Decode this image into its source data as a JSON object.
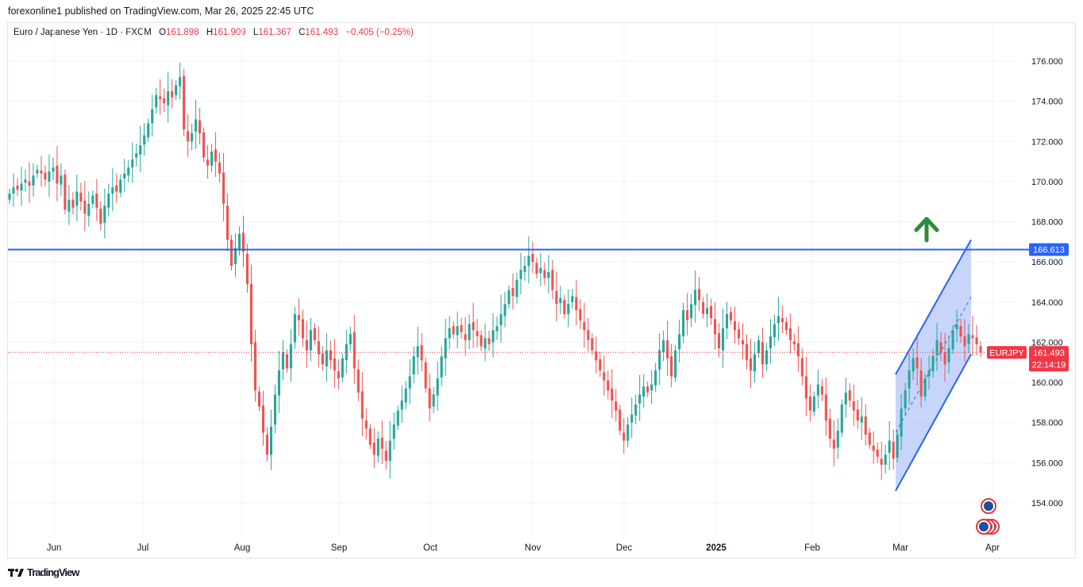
{
  "header": {
    "published": "forexonline1 published on TradingView.com, Mar 26, 2025 22:45 UTC"
  },
  "legend": {
    "symbol": "Euro / Japanese Yen · 1D · FXCM",
    "o_label": "O",
    "o": "161.898",
    "h_label": "H",
    "h": "161.909",
    "l_label": "L",
    "l": "161.367",
    "c_label": "C",
    "c": "161.493",
    "change": "−0.405 (−0.25%)"
  },
  "footer": {
    "logo_icon": "tradingview-logo-icon",
    "brand": "TradingView"
  },
  "colors": {
    "up": "#26a69a",
    "down": "#ef5350",
    "level": "#2962ff",
    "channel_fill": "#9bb3f7",
    "arrow": "#2e8b3a",
    "price_label": "#f23645"
  },
  "chart_data": {
    "type": "candlestick",
    "title": "Euro / Japanese Yen · 1D · FXCM",
    "ylim": [
      152.5,
      177.5
    ],
    "yticks": [
      "154.000",
      "156.000",
      "158.000",
      "160.000",
      "162.000",
      "164.000",
      "166.000",
      "168.000",
      "170.000",
      "172.000",
      "174.000",
      "176.000"
    ],
    "xticks": [
      "Jun",
      "Jul",
      "Aug",
      "Sep",
      "Oct",
      "Nov",
      "Dec",
      "2025",
      "Feb",
      "Mar",
      "Apr"
    ],
    "horizontal_level": {
      "value": 166.613,
      "label": "166.613"
    },
    "last_price": {
      "value": 161.493,
      "symbol": "EURJPY",
      "label": "161.493",
      "countdown": "22:14:19"
    },
    "channel": {
      "start": "2025-02-28",
      "end": "2025-03-24",
      "lower_start": 154.6,
      "lower_end": 161.4,
      "upper_start": 160.4,
      "upper_end": 167.1
    },
    "closes": [
      169.4,
      169.7,
      169.6,
      169.9,
      170.1,
      169.8,
      170.3,
      170.6,
      170.4,
      170.1,
      170.5,
      170.7,
      169.9,
      170.3,
      168.6,
      169.1,
      168.7,
      169.5,
      169.0,
      168.4,
      168.9,
      169.3,
      168.7,
      167.9,
      168.8,
      169.4,
      169.7,
      169.5,
      170.1,
      170.4,
      170.7,
      171.1,
      171.4,
      171.8,
      172.3,
      172.9,
      173.6,
      174.3,
      174.1,
      173.9,
      174.5,
      174.2,
      174.8,
      175.2,
      172.6,
      172.0,
      172.4,
      173.1,
      172.4,
      171.2,
      170.8,
      171.5,
      171.0,
      170.4,
      168.9,
      167.1,
      165.8,
      166.7,
      167.4,
      166.5,
      164.9,
      161.9,
      159.6,
      158.8,
      157.5,
      156.4,
      157.8,
      159.4,
      160.6,
      161.5,
      160.7,
      161.9,
      163.4,
      163.1,
      162.2,
      161.6,
      162.6,
      162.1,
      161.4,
      160.9,
      161.6,
      161.1,
      160.6,
      160.2,
      161.2,
      161.9,
      162.4,
      160.7,
      159.5,
      158.2,
      157.7,
      156.9,
      156.4,
      157.2,
      156.7,
      156.1,
      157.1,
      157.9,
      158.6,
      159.1,
      159.7,
      160.3,
      161.3,
      161.8,
      161.1,
      159.7,
      158.7,
      159.4,
      160.2,
      161.3,
      162.2,
      162.7,
      162.4,
      162.8,
      162.5,
      162.1,
      162.9,
      162.6,
      162.3,
      161.8,
      162.2,
      161.9,
      162.6,
      162.8,
      163.4,
      163.9,
      164.6,
      164.3,
      165.1,
      165.6,
      165.8,
      166.3,
      166.0,
      165.4,
      165.7,
      165.2,
      165.5,
      164.6,
      163.9,
      164.2,
      163.4,
      163.9,
      164.3,
      163.6,
      163.1,
      162.6,
      162.1,
      161.6,
      161.1,
      160.6,
      160.1,
      159.6,
      159.1,
      158.6,
      157.6,
      157.1,
      157.9,
      158.4,
      158.9,
      159.4,
      159.8,
      159.5,
      159.9,
      160.6,
      161.6,
      162.1,
      161.2,
      160.3,
      161.6,
      162.4,
      163.6,
      163.1,
      163.9,
      164.6,
      164.1,
      163.4,
      163.7,
      163.2,
      162.4,
      161.7,
      162.7,
      163.4,
      163.1,
      162.6,
      162.2,
      161.9,
      161.1,
      160.6,
      161.4,
      162.1,
      160.9,
      161.6,
      162.3,
      162.9,
      163.3,
      163.0,
      162.6,
      162.1,
      161.9,
      161.3,
      160.3,
      159.2,
      158.6,
      159.3,
      159.9,
      159.4,
      158.1,
      157.2,
      156.7,
      157.6,
      158.9,
      159.5,
      159.1,
      158.6,
      158.1,
      158.3,
      157.4,
      156.9,
      156.6,
      156.3,
      155.9,
      156.4,
      157.1,
      156.2,
      157.4,
      158.7,
      159.6,
      160.6,
      161.2,
      160.7,
      159.3,
      160.2,
      160.6,
      161.3,
      162.1,
      161.5,
      160.9,
      161.7,
      162.6,
      162.9,
      162.3,
      161.8,
      162.4,
      162.2,
      161.9,
      161.493
    ]
  }
}
